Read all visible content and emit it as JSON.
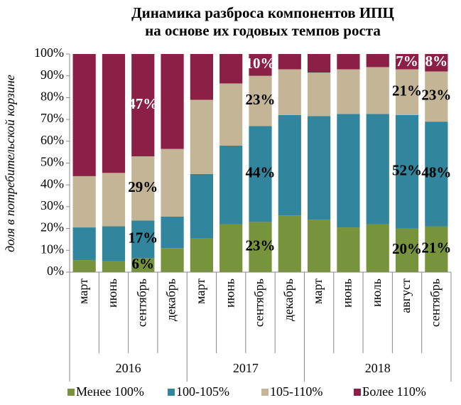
{
  "chart_data": {
    "type": "stacked_bar",
    "title": [
      "Динамика разброса компонентов ИПЦ",
      "на основе их годовых темпов роста"
    ],
    "y_label": "доля в потребительской корзине",
    "category_groups": [
      {
        "label": "2016",
        "categories": [
          "март",
          "июнь",
          "сентябрь",
          "декабрь"
        ]
      },
      {
        "label": "2017",
        "categories": [
          "март",
          "июнь",
          "сентябрь",
          "декабрь"
        ]
      },
      {
        "label": "2018",
        "categories": [
          "март",
          "июнь",
          "июль",
          "август",
          "сентябрь"
        ]
      }
    ],
    "series": [
      {
        "name": "Менее 100%",
        "color": "#77933c",
        "values": [
          5.5,
          5,
          6.4,
          11,
          15.5,
          22,
          23,
          26,
          24,
          20.5,
          22,
          20,
          21
        ],
        "value_labels": [
          null,
          null,
          "6%",
          null,
          null,
          null,
          "23%",
          null,
          null,
          null,
          null,
          "20%",
          "21%"
        ]
      },
      {
        "name": "100-105%",
        "color": "#31859c",
        "values": [
          15,
          16,
          17.3,
          14.5,
          29.5,
          36,
          44,
          46,
          47.5,
          52,
          50.5,
          52,
          48
        ],
        "value_labels": [
          null,
          null,
          "17%",
          null,
          null,
          null,
          "44%",
          null,
          null,
          null,
          null,
          "52%",
          "48%"
        ]
      },
      {
        "name": "105-110%",
        "color": "#c4b596",
        "values": [
          23.5,
          24.5,
          29.4,
          31,
          34,
          28.5,
          23,
          21,
          20,
          20.5,
          21.5,
          21,
          23
        ],
        "value_labels": [
          null,
          null,
          "29%",
          null,
          null,
          null,
          "23%",
          null,
          null,
          null,
          null,
          "21%",
          "23%"
        ]
      },
      {
        "name": "Более 110%",
        "color": "#8b1f45",
        "values": [
          56,
          54.5,
          46.9,
          43.5,
          21,
          13.5,
          10,
          7,
          8.5,
          7,
          6,
          7,
          8
        ],
        "value_labels": [
          null,
          null,
          "47%",
          null,
          null,
          null,
          "10%",
          null,
          null,
          null,
          null,
          "7%",
          "8%"
        ]
      }
    ],
    "ylim": [
      0,
      100
    ],
    "yticks": [
      {
        "value": 0,
        "label": "0%"
      },
      {
        "value": 10,
        "label": "10%"
      },
      {
        "value": 20,
        "label": "20%"
      },
      {
        "value": 30,
        "label": "30%"
      },
      {
        "value": 40,
        "label": "40%"
      },
      {
        "value": 50,
        "label": "50%"
      },
      {
        "value": 60,
        "label": "60%"
      },
      {
        "value": 70,
        "label": "70%"
      },
      {
        "value": 80,
        "label": "80%"
      },
      {
        "value": 90,
        "label": "90%"
      },
      {
        "value": 100,
        "label": "100%"
      }
    ],
    "legend": "bottom"
  }
}
